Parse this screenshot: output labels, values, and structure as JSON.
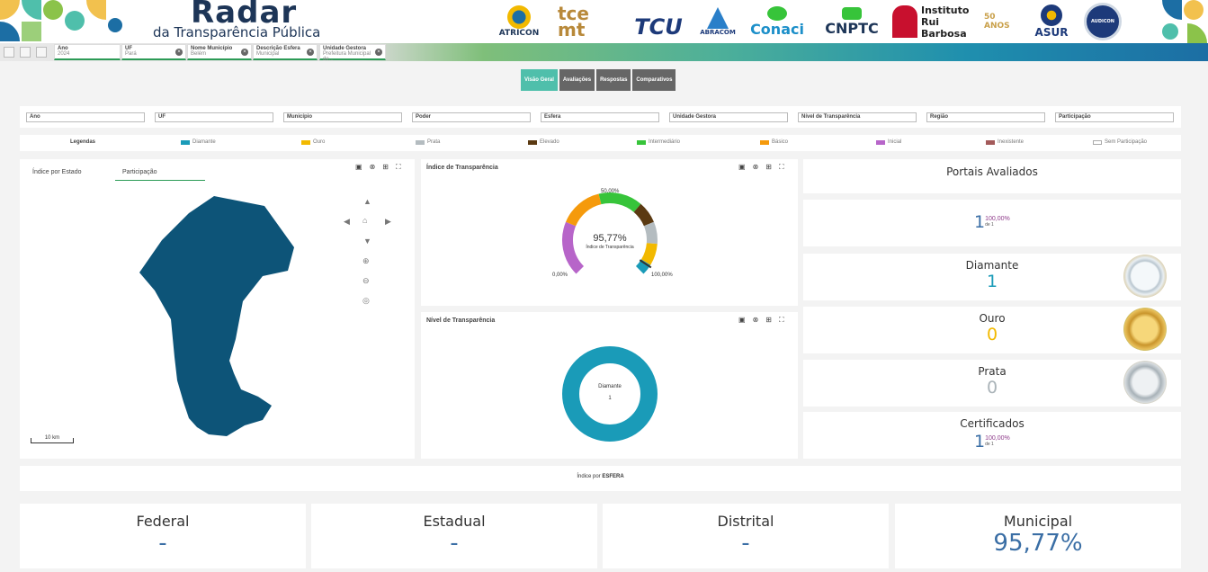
{
  "header": {
    "title": "Radar",
    "subtitle": "da Transparência Pública",
    "logos": [
      "ATRICON",
      "tce mt",
      "TCU",
      "ABRACOM",
      "Conaci",
      "CNPTC",
      "Instituto Rui Barbosa",
      "50 ANOS",
      "ASUR",
      "AUDICON"
    ]
  },
  "filter_bar": {
    "chips": [
      {
        "title": "Ano",
        "value": "2024"
      },
      {
        "title": "UF",
        "value": "Pará"
      },
      {
        "title": "Nome Município",
        "value": "Belém"
      },
      {
        "title": "Descrição Esfera",
        "value": "Municipal"
      },
      {
        "title": "Unidade Gestora",
        "value": "Prefeitura Municipal de..."
      }
    ]
  },
  "tabs": [
    "Visão Geral",
    "Avaliações",
    "Respostas",
    "Comparativos"
  ],
  "filters": [
    "Ano",
    "UF",
    "Município",
    "Poder",
    "Esfera",
    "Unidade Gestora",
    "Nível de Transparência",
    "Região",
    "Participação"
  ],
  "legend": {
    "title": "Legendas",
    "items": [
      {
        "label": "Diamante",
        "color": "#1a9bb8"
      },
      {
        "label": "Ouro",
        "color": "#f2b900"
      },
      {
        "label": "Prata",
        "color": "#b4bcc0"
      },
      {
        "label": "Elevado",
        "color": "#5b3a12"
      },
      {
        "label": "Intermediário",
        "color": "#37c43a"
      },
      {
        "label": "Básico",
        "color": "#f59a0c"
      },
      {
        "label": "Inicial",
        "color": "#b765c9"
      },
      {
        "label": "Inexistente",
        "color": "#a35a5a"
      },
      {
        "label": "Sem Participação",
        "color": "#ffffff"
      }
    ]
  },
  "map_panel": {
    "tabs": [
      "Índice por Estado",
      "Participação"
    ],
    "scale": "10 km"
  },
  "gauge_panel": {
    "title": "Índice de Transparência",
    "value": "95,77%",
    "caption": "Índice de Transparência",
    "min": "0,00%",
    "mid": "50,00%",
    "max": "100,00%",
    "fraction": 0.9577
  },
  "donut_panel": {
    "title": "Nível de Transparência",
    "center_label": "Diamante",
    "center_value": "1",
    "color": "#1a9bb8"
  },
  "cards": {
    "portais_title": "Portais Avaliados",
    "portais_num": "1",
    "portais_pct": "100,00%",
    "portais_de": "de 1",
    "diamante_label": "Diamante",
    "diamante_value": "1",
    "ouro_label": "Ouro",
    "ouro_value": "0",
    "prata_label": "Prata",
    "prata_value": "0",
    "cert_label": "Certificados",
    "cert_num": "1",
    "cert_pct": "100,00%",
    "cert_de": "de 1"
  },
  "esfera": {
    "heading_prefix": "Índice por",
    "heading_bold": "ESFERA",
    "items": [
      {
        "label": "Federal",
        "value": "-"
      },
      {
        "label": "Estadual",
        "value": "-"
      },
      {
        "label": "Distrital",
        "value": "-"
      },
      {
        "label": "Municipal",
        "value": "95,77%"
      }
    ]
  }
}
